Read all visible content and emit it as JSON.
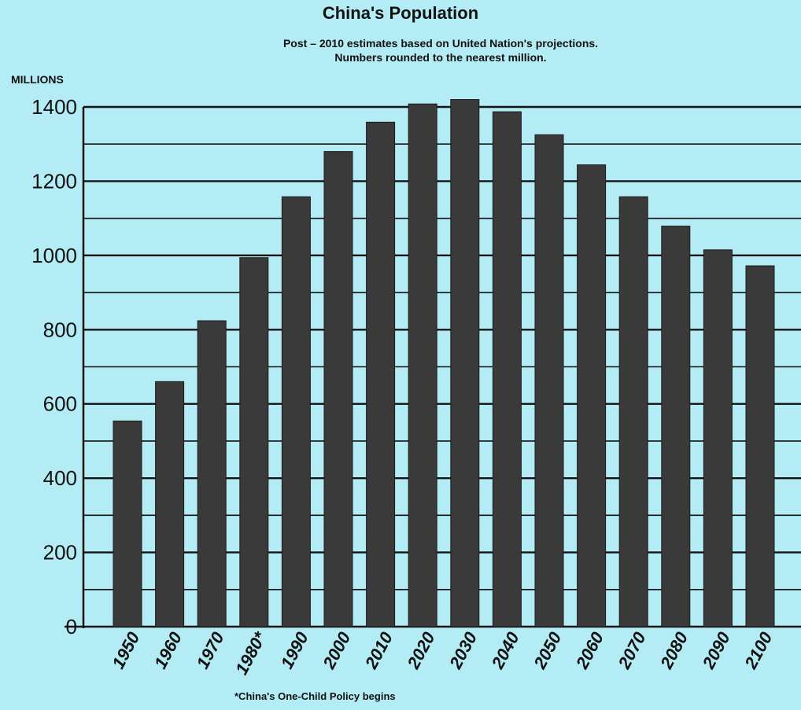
{
  "chart_data": {
    "type": "bar",
    "title": "China's Population",
    "subtitle": [
      "Post – 2010 estimates based on United Nation's projections.",
      "Numbers rounded to the nearest million."
    ],
    "ylabel": "MILLIONS",
    "xlabel": "",
    "ylim": [
      0,
      1400
    ],
    "yticks": [
      0,
      200,
      400,
      600,
      800,
      1000,
      1200,
      1400
    ],
    "grid": true,
    "categories": [
      "1950",
      "1960",
      "1970",
      "1980*",
      "1990",
      "2000",
      "2010",
      "2020",
      "2030",
      "2040",
      "2050",
      "2060",
      "2070",
      "2080",
      "2090",
      "2100"
    ],
    "values": [
      554,
      660,
      824,
      994,
      1158,
      1280,
      1359,
      1408,
      1420,
      1387,
      1325,
      1244,
      1158,
      1079,
      1015,
      972
    ],
    "bar_color": "#3a3a3a",
    "footnote": "*China's One-Child Policy begins"
  }
}
